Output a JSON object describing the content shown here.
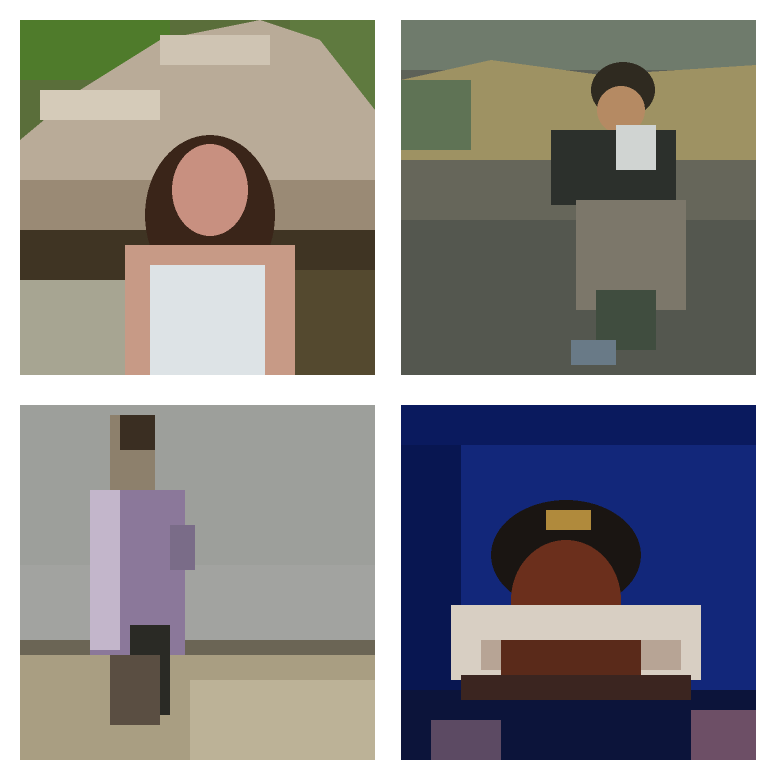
{
  "grid": {
    "rows": 2,
    "columns": 2,
    "tiles": [
      {
        "subject": "girl-in-white-top",
        "position": "top-left"
      },
      {
        "subject": "child-in-dark-jacket",
        "position": "top-right"
      },
      {
        "subject": "child-on-beach",
        "position": "bottom-left"
      },
      {
        "subject": "baby-on-blue-backdrop",
        "position": "bottom-right"
      }
    ]
  },
  "colors": {
    "page_background": "#ffffff",
    "tile1_sky": "#4f6b33",
    "tile2_field": "#5d6158",
    "tile3_water": "#9d9f9b",
    "tile4_backdrop": "#12277a"
  }
}
